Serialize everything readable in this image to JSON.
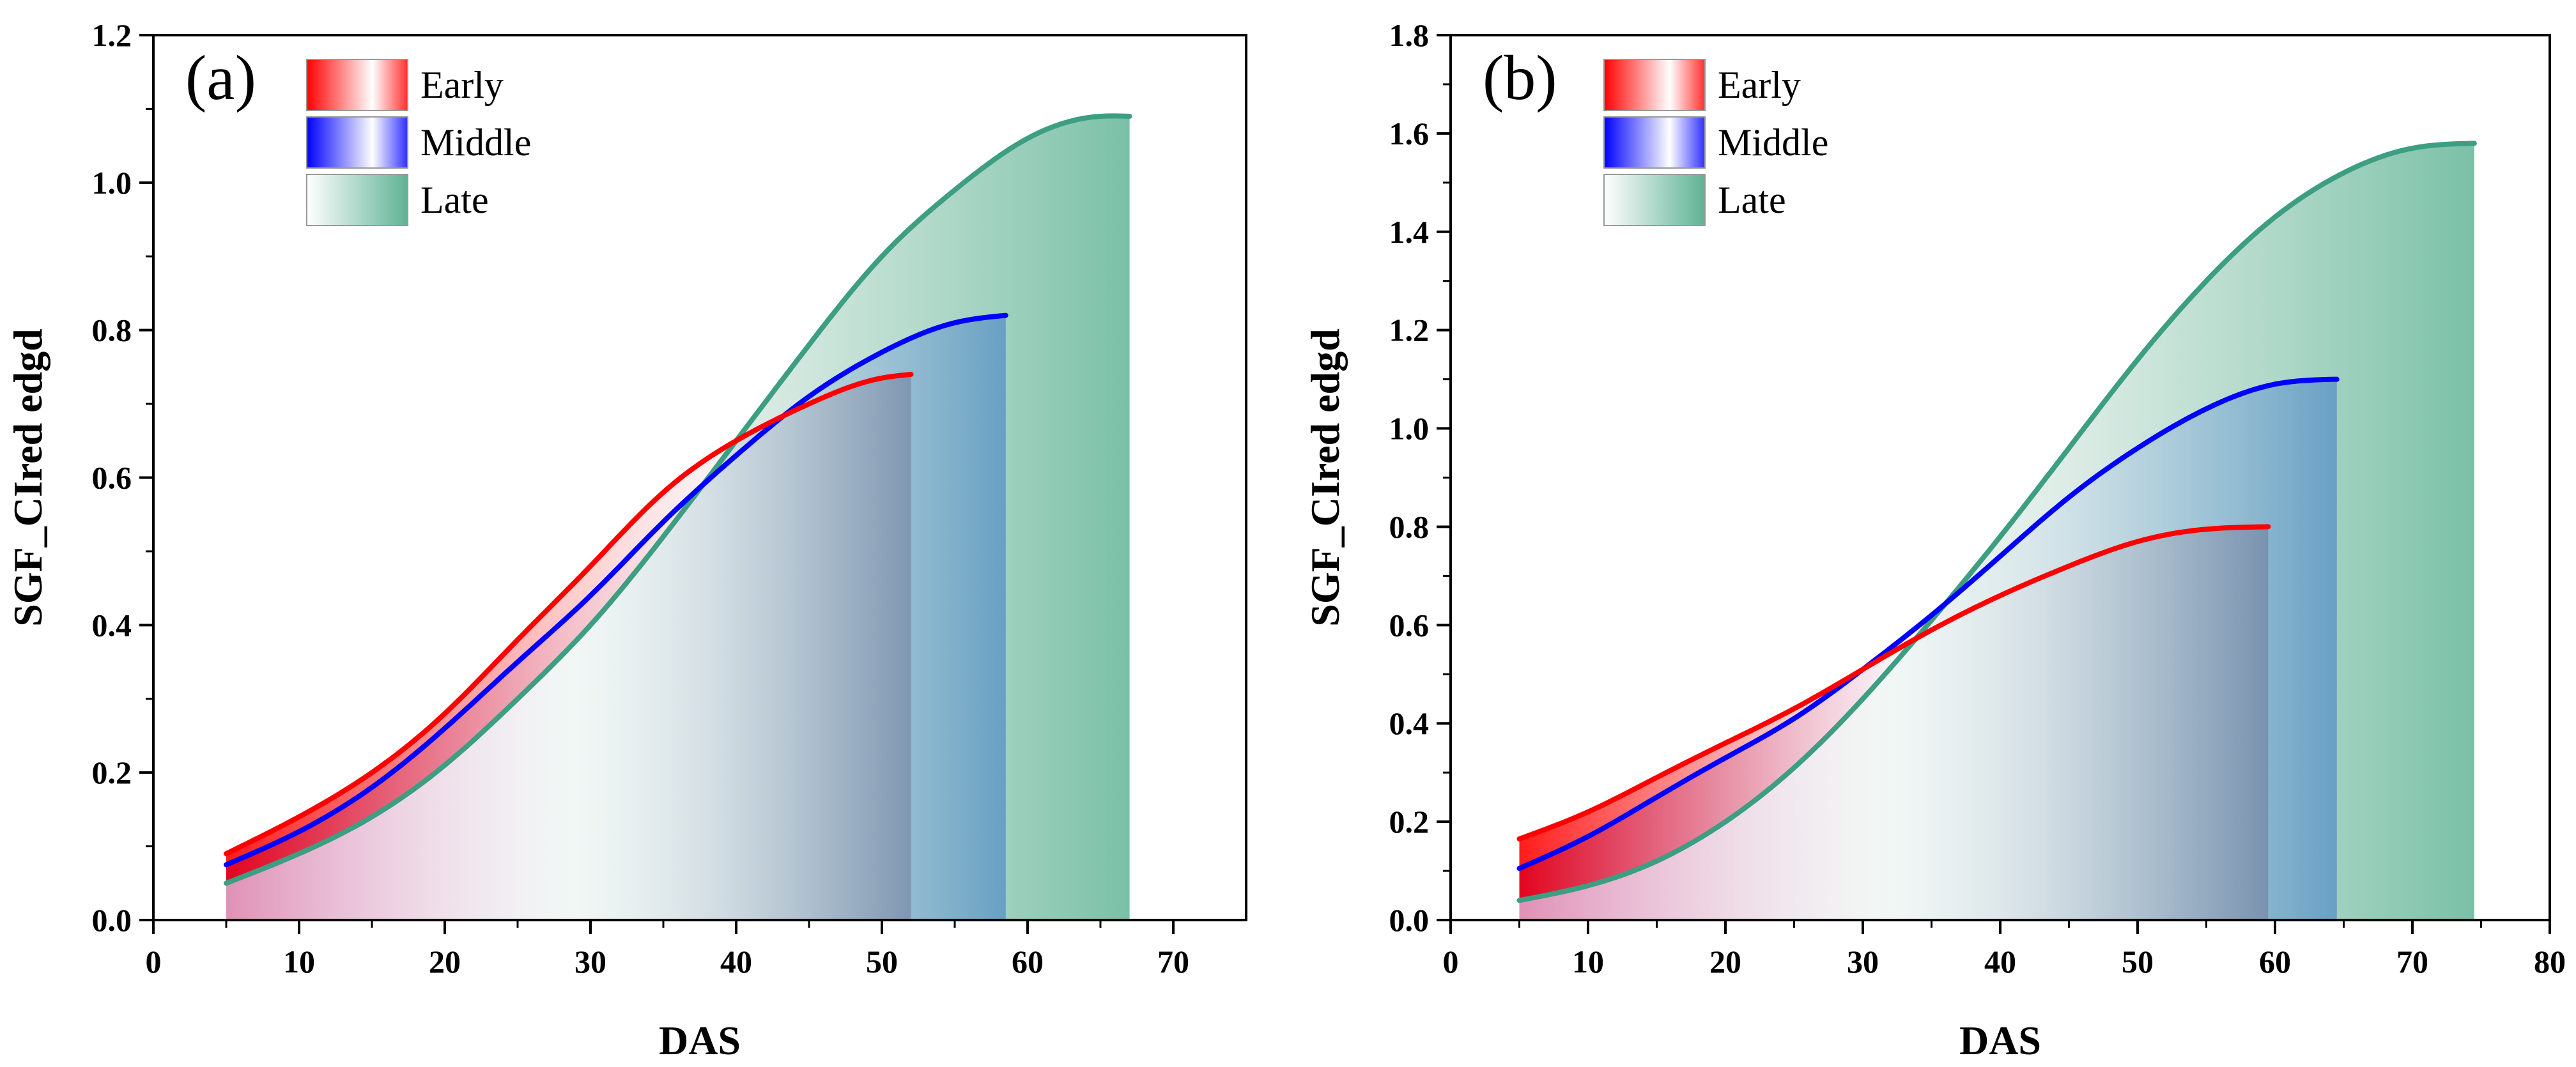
{
  "chart_data": [
    {
      "type": "area",
      "panel_label": "(a)",
      "xlabel": "DAS",
      "ylabel": "SGF_CIred edgd",
      "xlim": [
        0,
        75
      ],
      "ylim": [
        0,
        1.2
      ],
      "xticks": [
        0,
        10,
        20,
        30,
        40,
        50,
        60,
        70
      ],
      "yticks": [
        0.0,
        0.2,
        0.4,
        0.6,
        0.8,
        1.0,
        1.2
      ],
      "ytick_labels": [
        "0.0",
        "0.2",
        "0.4",
        "0.6",
        "0.8",
        "1.0",
        "1.2"
      ],
      "legend_position": "top-left",
      "series": [
        {
          "name": "Late",
          "x": [
            5,
            10,
            15,
            20,
            25,
            30,
            35,
            40,
            45,
            50,
            55,
            60,
            65,
            67
          ],
          "values": [
            0.05,
            0.09,
            0.14,
            0.21,
            0.3,
            0.4,
            0.52,
            0.65,
            0.78,
            0.9,
            0.99,
            1.06,
            1.09,
            1.09
          ]
        },
        {
          "name": "Middle",
          "x": [
            5,
            10,
            15,
            20,
            25,
            30,
            35,
            40,
            45,
            50,
            55,
            58.5
          ],
          "values": [
            0.075,
            0.12,
            0.18,
            0.26,
            0.35,
            0.44,
            0.54,
            0.63,
            0.71,
            0.77,
            0.81,
            0.82
          ]
        },
        {
          "name": "Early",
          "x": [
            5,
            10,
            15,
            20,
            25,
            30,
            35,
            40,
            45,
            50,
            52
          ],
          "values": [
            0.09,
            0.14,
            0.2,
            0.28,
            0.38,
            0.48,
            0.58,
            0.65,
            0.7,
            0.735,
            0.74
          ]
        }
      ]
    },
    {
      "type": "area",
      "panel_label": "(b)",
      "xlabel": "DAS",
      "ylabel": "SGF_CIred edgd",
      "xlim": [
        0,
        80
      ],
      "ylim": [
        0,
        1.8
      ],
      "xticks": [
        0,
        10,
        20,
        30,
        40,
        50,
        60,
        70,
        80
      ],
      "yticks": [
        0.0,
        0.2,
        0.4,
        0.6,
        0.8,
        1.0,
        1.2,
        1.4,
        1.6,
        1.8
      ],
      "ytick_labels": [
        "0.0",
        "0.2",
        "0.4",
        "0.6",
        "0.8",
        "1.0",
        "1.2",
        "1.4",
        "1.6",
        "1.8"
      ],
      "legend_position": "top-left",
      "series": [
        {
          "name": "Late",
          "x": [
            5,
            10,
            15,
            20,
            25,
            30,
            35,
            40,
            45,
            50,
            55,
            60,
            65,
            70,
            74.5
          ],
          "values": [
            0.04,
            0.07,
            0.12,
            0.2,
            0.31,
            0.45,
            0.61,
            0.78,
            0.96,
            1.14,
            1.3,
            1.43,
            1.52,
            1.57,
            1.58
          ]
        },
        {
          "name": "Middle",
          "x": [
            5,
            10,
            15,
            20,
            25,
            30,
            35,
            40,
            45,
            50,
            55,
            60,
            64.5
          ],
          "values": [
            0.105,
            0.17,
            0.25,
            0.33,
            0.41,
            0.51,
            0.62,
            0.74,
            0.86,
            0.96,
            1.04,
            1.09,
            1.1
          ]
        },
        {
          "name": "Early",
          "x": [
            5,
            10,
            15,
            20,
            25,
            30,
            35,
            40,
            45,
            50,
            55,
            59.5
          ],
          "values": [
            0.165,
            0.22,
            0.29,
            0.36,
            0.43,
            0.51,
            0.59,
            0.66,
            0.72,
            0.77,
            0.795,
            0.8
          ]
        }
      ]
    }
  ],
  "legend": {
    "items": [
      {
        "label": "Early",
        "line": "#ff0000",
        "fill_a": "#ff0000",
        "fill_b": "#ffffff"
      },
      {
        "label": "Middle",
        "line": "#0000ff",
        "fill_a": "#0000ff",
        "fill_b": "#ffffff"
      },
      {
        "label": "Late",
        "line": "#3d9e82",
        "fill_a": "#ffffff",
        "fill_b": "#6fbba1"
      }
    ]
  }
}
